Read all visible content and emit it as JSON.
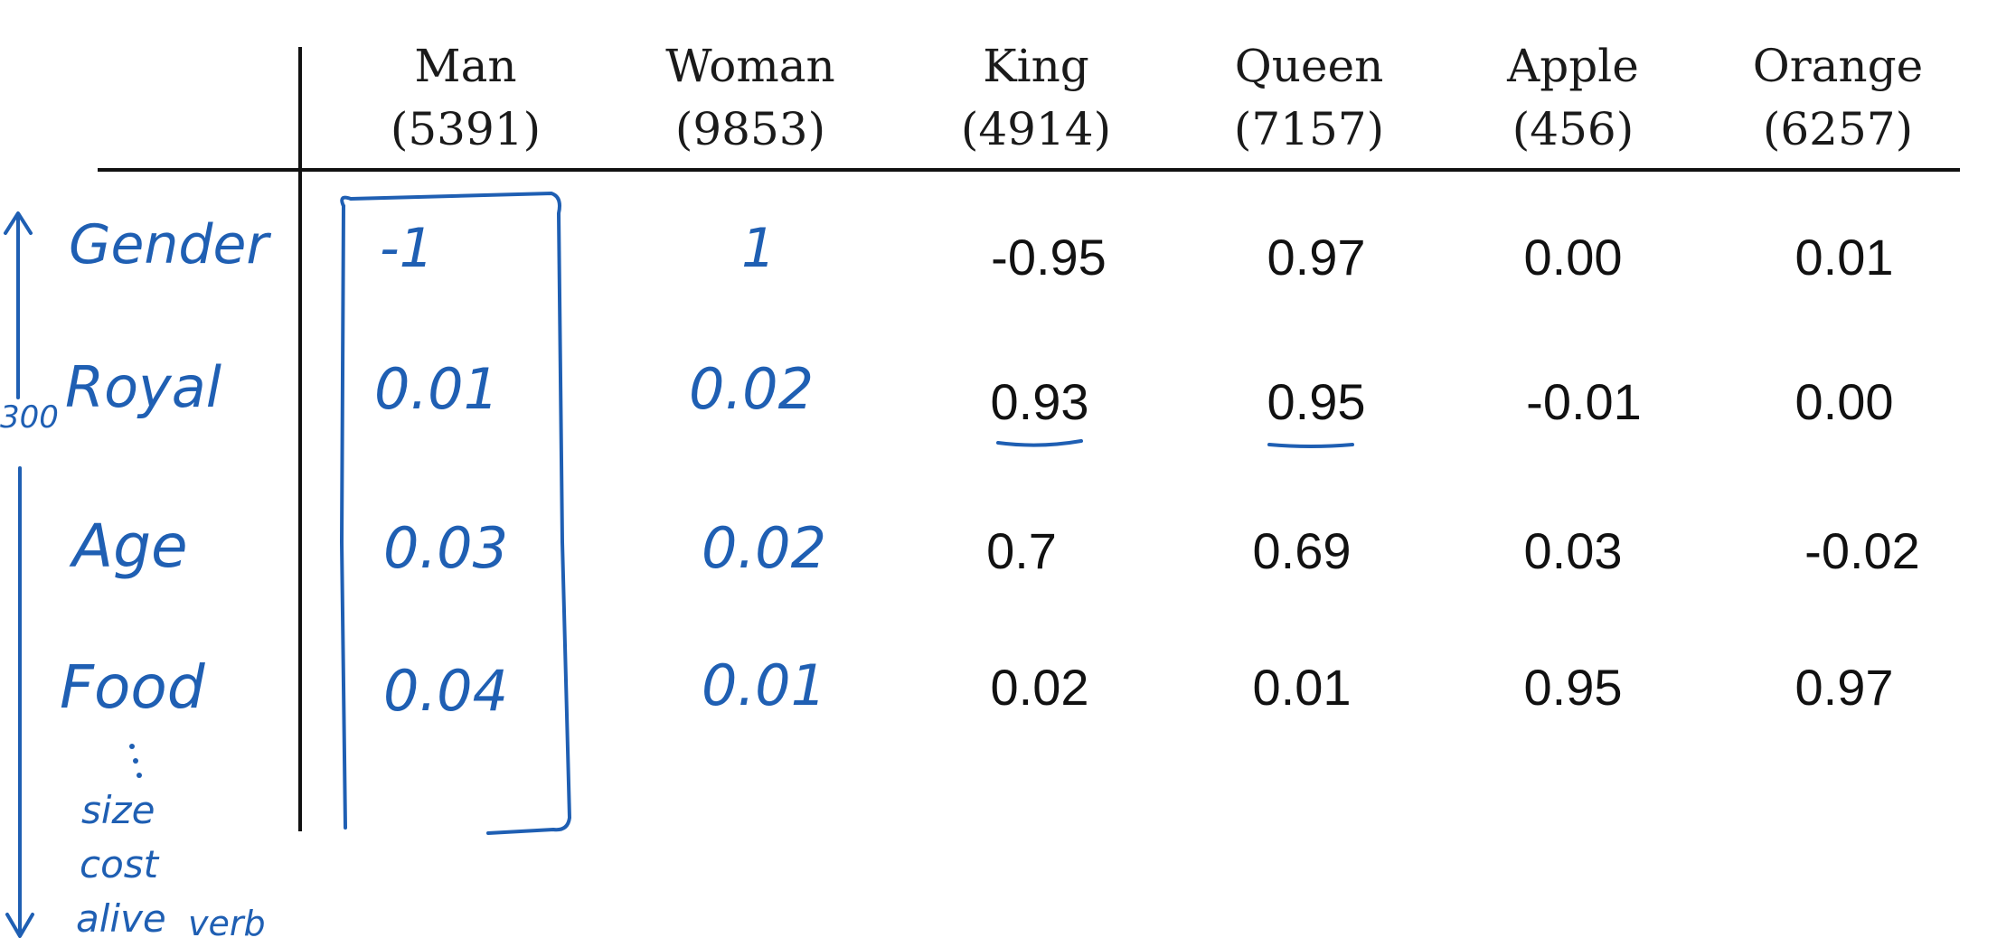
{
  "columns": [
    {
      "word": "Man",
      "index": "(5391)"
    },
    {
      "word": "Woman",
      "index": "(9853)"
    },
    {
      "word": "King",
      "index": "(4914)"
    },
    {
      "word": "Queen",
      "index": "(7157)"
    },
    {
      "word": "Apple",
      "index": "(456)"
    },
    {
      "word": "Orange",
      "index": "(6257)"
    }
  ],
  "rows": [
    {
      "feature": "Gender",
      "values": [
        "-1",
        "1",
        "-0.95",
        "0.97",
        "0.00",
        "0.01"
      ]
    },
    {
      "feature": "Royal",
      "values": [
        "0.01",
        "0.02",
        "0.93",
        "0.95",
        "-0.01",
        "0.00"
      ]
    },
    {
      "feature": "Age",
      "values": [
        "0.03",
        "0.02",
        "0.7",
        "0.69",
        "0.03",
        "-0.02"
      ]
    },
    {
      "feature": "Food",
      "values": [
        "0.04",
        "0.01",
        "0.02",
        "0.01",
        "0.95",
        "0.97"
      ]
    }
  ],
  "extra_features": [
    "size",
    "cost",
    "alive",
    "verb"
  ],
  "dimension_label": "300",
  "ink_color": "#1f5fb3"
}
